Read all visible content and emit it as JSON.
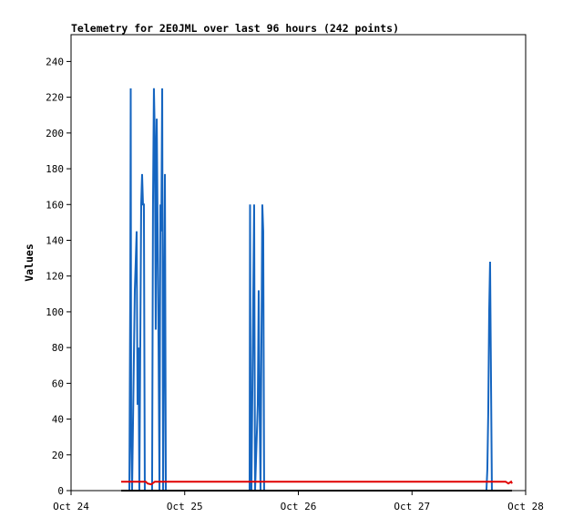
{
  "chart_data": {
    "type": "line",
    "title": "Telemetry for 2E0JML over last 96 hours (242 points)",
    "y_label": "Values",
    "xlim": [
      24,
      28
    ],
    "xticks": [
      {
        "value": 24,
        "label": "Oct 24"
      },
      {
        "value": 25,
        "label": "Oct 25"
      },
      {
        "value": 26,
        "label": "Oct 26"
      },
      {
        "value": 27,
        "label": "Oct 27"
      },
      {
        "value": 28,
        "label": "Oct 28"
      }
    ],
    "ylim": [
      0,
      255
    ],
    "yticks": [
      0,
      20,
      40,
      60,
      80,
      100,
      120,
      140,
      160,
      180,
      200,
      220,
      240
    ],
    "series": [
      {
        "color": "#1565c0",
        "x": [
          24.513,
          24.521,
          24.525,
          24.529,
          24.537,
          24.561,
          24.569,
          24.577,
          24.585,
          24.593,
          24.601,
          24.617,
          24.625,
          24.633,
          24.641,
          24.649,
          24.713,
          24.721,
          24.729,
          24.737,
          24.745,
          24.754,
          24.762,
          24.77,
          24.778,
          24.786,
          24.794,
          24.802,
          24.81,
          24.826,
          24.834,
          25.571,
          25.575,
          25.579,
          25.587,
          25.611,
          25.619,
          25.643,
          25.651,
          25.659,
          25.667,
          25.683,
          25.691,
          25.699,
          27.655,
          27.663,
          27.671,
          27.679,
          27.687,
          27.695,
          27.703
        ],
        "values": [
          0,
          112,
          225,
          32,
          0,
          112,
          128,
          145,
          48,
          80,
          0,
          160,
          177,
          160,
          160,
          0,
          0,
          160,
          225,
          198,
          90,
          208,
          145,
          80,
          0,
          160,
          145,
          225,
          0,
          177,
          0,
          0,
          160,
          56,
          0,
          160,
          0,
          48,
          112,
          48,
          0,
          160,
          145,
          0,
          0,
          12,
          44,
          100,
          128,
          64,
          0
        ]
      },
      {
        "color": "#e00000",
        "x": [
          24.441,
          24.657,
          24.673,
          24.705,
          24.737,
          25.699,
          27.824,
          27.848,
          27.872,
          27.88
        ],
        "values": [
          5,
          5,
          4,
          3.5,
          5,
          5,
          5,
          4,
          5,
          4
        ]
      },
      {
        "color": "#000000",
        "x": [
          24.441,
          27.88
        ],
        "values": [
          0,
          0
        ]
      }
    ]
  }
}
